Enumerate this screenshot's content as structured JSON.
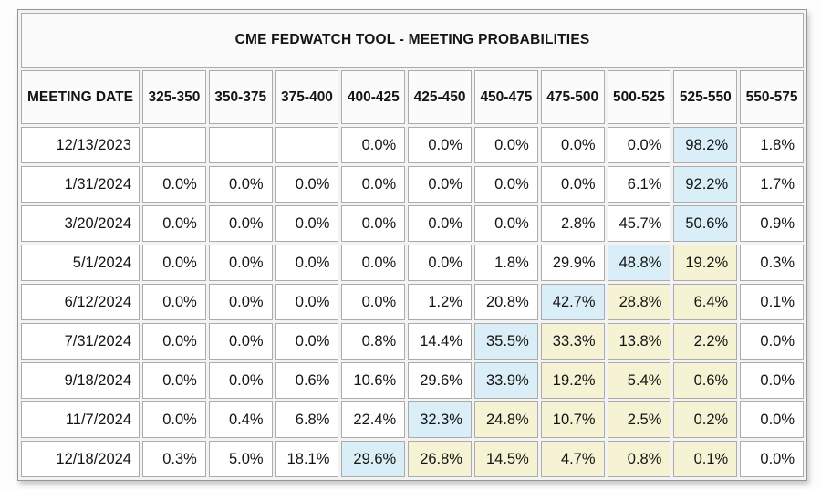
{
  "title": "CME FEDWATCH TOOL - MEETING PROBABILITIES",
  "colors": {
    "highlight_blue": "#d9eef6",
    "highlight_yellow": "#f6f3d4"
  },
  "table": {
    "columns": [
      "MEETING DATE",
      "325-350",
      "350-375",
      "375-400",
      "400-425",
      "425-450",
      "450-475",
      "475-500",
      "500-525",
      "525-550",
      "550-575"
    ],
    "rows": [
      {
        "date": "12/13/2023",
        "values": [
          "",
          "",
          "",
          "0.0%",
          "0.0%",
          "0.0%",
          "0.0%",
          "0.0%",
          "98.2%",
          "1.8%"
        ],
        "highlights": [
          "",
          "",
          "",
          "",
          "",
          "",
          "",
          "",
          "blue",
          ""
        ]
      },
      {
        "date": "1/31/2024",
        "values": [
          "0.0%",
          "0.0%",
          "0.0%",
          "0.0%",
          "0.0%",
          "0.0%",
          "0.0%",
          "6.1%",
          "92.2%",
          "1.7%"
        ],
        "highlights": [
          "",
          "",
          "",
          "",
          "",
          "",
          "",
          "",
          "blue",
          ""
        ]
      },
      {
        "date": "3/20/2024",
        "values": [
          "0.0%",
          "0.0%",
          "0.0%",
          "0.0%",
          "0.0%",
          "0.0%",
          "2.8%",
          "45.7%",
          "50.6%",
          "0.9%"
        ],
        "highlights": [
          "",
          "",
          "",
          "",
          "",
          "",
          "",
          "",
          "blue",
          ""
        ]
      },
      {
        "date": "5/1/2024",
        "values": [
          "0.0%",
          "0.0%",
          "0.0%",
          "0.0%",
          "0.0%",
          "1.8%",
          "29.9%",
          "48.8%",
          "19.2%",
          "0.3%"
        ],
        "highlights": [
          "",
          "",
          "",
          "",
          "",
          "",
          "",
          "blue",
          "yellow",
          ""
        ]
      },
      {
        "date": "6/12/2024",
        "values": [
          "0.0%",
          "0.0%",
          "0.0%",
          "0.0%",
          "1.2%",
          "20.8%",
          "42.7%",
          "28.8%",
          "6.4%",
          "0.1%"
        ],
        "highlights": [
          "",
          "",
          "",
          "",
          "",
          "",
          "blue",
          "yellow",
          "yellow",
          ""
        ]
      },
      {
        "date": "7/31/2024",
        "values": [
          "0.0%",
          "0.0%",
          "0.0%",
          "0.8%",
          "14.4%",
          "35.5%",
          "33.3%",
          "13.8%",
          "2.2%",
          "0.0%"
        ],
        "highlights": [
          "",
          "",
          "",
          "",
          "",
          "blue",
          "yellow",
          "yellow",
          "yellow",
          ""
        ]
      },
      {
        "date": "9/18/2024",
        "values": [
          "0.0%",
          "0.0%",
          "0.6%",
          "10.6%",
          "29.6%",
          "33.9%",
          "19.2%",
          "5.4%",
          "0.6%",
          "0.0%"
        ],
        "highlights": [
          "",
          "",
          "",
          "",
          "",
          "blue",
          "yellow",
          "yellow",
          "yellow",
          ""
        ]
      },
      {
        "date": "11/7/2024",
        "values": [
          "0.0%",
          "0.4%",
          "6.8%",
          "22.4%",
          "32.3%",
          "24.8%",
          "10.7%",
          "2.5%",
          "0.2%",
          "0.0%"
        ],
        "highlights": [
          "",
          "",
          "",
          "",
          "blue",
          "yellow",
          "yellow",
          "yellow",
          "yellow",
          ""
        ]
      },
      {
        "date": "12/18/2024",
        "values": [
          "0.3%",
          "5.0%",
          "18.1%",
          "29.6%",
          "26.8%",
          "14.5%",
          "4.7%",
          "0.8%",
          "0.1%",
          "0.0%"
        ],
        "highlights": [
          "",
          "",
          "",
          "blue",
          "yellow",
          "yellow",
          "yellow",
          "yellow",
          "yellow",
          ""
        ]
      }
    ]
  }
}
